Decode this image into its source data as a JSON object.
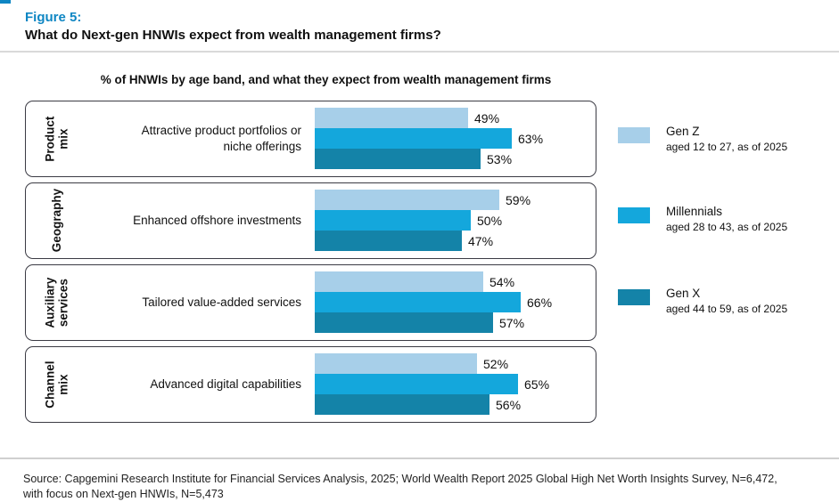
{
  "figure": {
    "label": "Figure 5:",
    "title": "What do Next-gen HNWIs expect from wealth management firms?"
  },
  "chart_data": {
    "type": "bar",
    "orientation": "horizontal",
    "title": "% of HNWIs by age band, and what they expect from wealth management firms",
    "value_unit": "%",
    "axis": "hidden",
    "data_labels": true,
    "legend_position": "right",
    "series": [
      {
        "name": "Gen Z",
        "detail": "aged 12 to 27, as of 2025",
        "color": "#A7CFE9"
      },
      {
        "name": "Millennials",
        "detail": "aged 28 to 43, as of 2025",
        "color": "#14A7DC"
      },
      {
        "name": "Gen X",
        "detail": "aged 44 to 59, as of 2025",
        "color": "#1483A8"
      }
    ],
    "groups": [
      {
        "section": "Product\nmix",
        "label": "Attractive product portfolios or\nniche offerings",
        "bars": [
          {
            "series": "Gen Z",
            "value": 49,
            "label": "49%"
          },
          {
            "series": "Millennials",
            "value": 63,
            "label": "63%"
          },
          {
            "series": "Gen X",
            "value": 53,
            "label": "53%"
          }
        ]
      },
      {
        "section": "Geography",
        "label": "Enhanced offshore investments",
        "bars": [
          {
            "series": "Gen Z",
            "value": 59,
            "label": "59%"
          },
          {
            "series": "Millennials",
            "value": 50,
            "label": "50%"
          },
          {
            "series": "Gen X",
            "value": 47,
            "label": "47%"
          }
        ]
      },
      {
        "section": "Auxiliary\nservices",
        "label": "Tailored value-added services",
        "bars": [
          {
            "series": "Gen Z",
            "value": 54,
            "label": "54%"
          },
          {
            "series": "Millennials",
            "value": 66,
            "label": "66%"
          },
          {
            "series": "Gen X",
            "value": 57,
            "label": "57%"
          }
        ]
      },
      {
        "section": "Channel\nmix",
        "label": "Advanced digital capabilities",
        "bars": [
          {
            "series": "Gen Z",
            "value": 52,
            "label": "52%"
          },
          {
            "series": "Millennials",
            "value": 65,
            "label": "65%"
          },
          {
            "series": "Gen X",
            "value": 56,
            "label": "56%"
          }
        ]
      }
    ]
  },
  "footer": {
    "source": "Source: Capgemini Research Institute for Financial Services Analysis, 2025; World Wealth Report 2025 Global High Net Worth Insights Survey, N=6,472,\nwith focus on Next-gen HNWIs, N=5,473"
  }
}
